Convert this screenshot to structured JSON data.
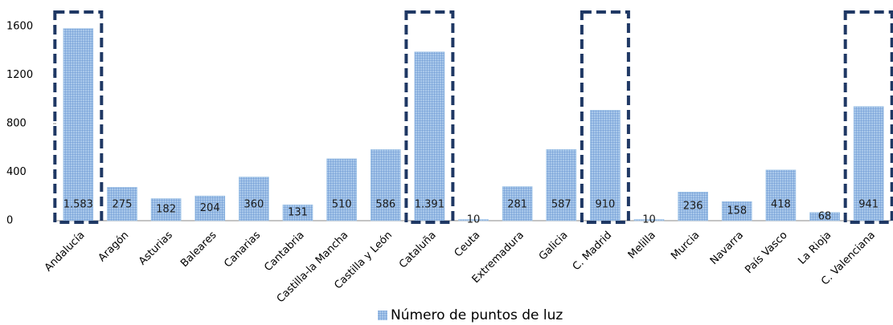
{
  "chart_data": {
    "type": "bar",
    "categories": [
      "Andalucía",
      "Aragón",
      "Asturias",
      "Baleares",
      "Canarias",
      "Cantabria",
      "Castilla-la Mancha",
      "Castilla y León",
      "Cataluña",
      "Ceuta",
      "Extremadura",
      "Galicia",
      "C. Madrid",
      "Melilla",
      "Murcia",
      "Navarra",
      "País Vasco",
      "La Rioja",
      "C. Valenciana"
    ],
    "series": [
      {
        "name": "Número de puntos de luz",
        "color": "#9dc3e6",
        "values": [
          1583,
          275,
          182,
          204,
          360,
          131,
          510,
          586,
          1391,
          10,
          281,
          587,
          910,
          10,
          236,
          158,
          418,
          68,
          941
        ],
        "value_labels": [
          "1.583",
          "275",
          "182",
          "204",
          "360",
          "131",
          "510",
          "586",
          "1.391",
          "10",
          "281",
          "587",
          "910",
          "10",
          "236",
          "158",
          "418",
          "68",
          "941"
        ]
      }
    ],
    "ylim": [
      0,
      1600
    ],
    "yticks": [
      0,
      400,
      800,
      1200,
      1600
    ],
    "highlight": [
      0,
      8,
      12,
      18
    ],
    "highlight_color": "#1f3864",
    "legend": "bottom"
  }
}
